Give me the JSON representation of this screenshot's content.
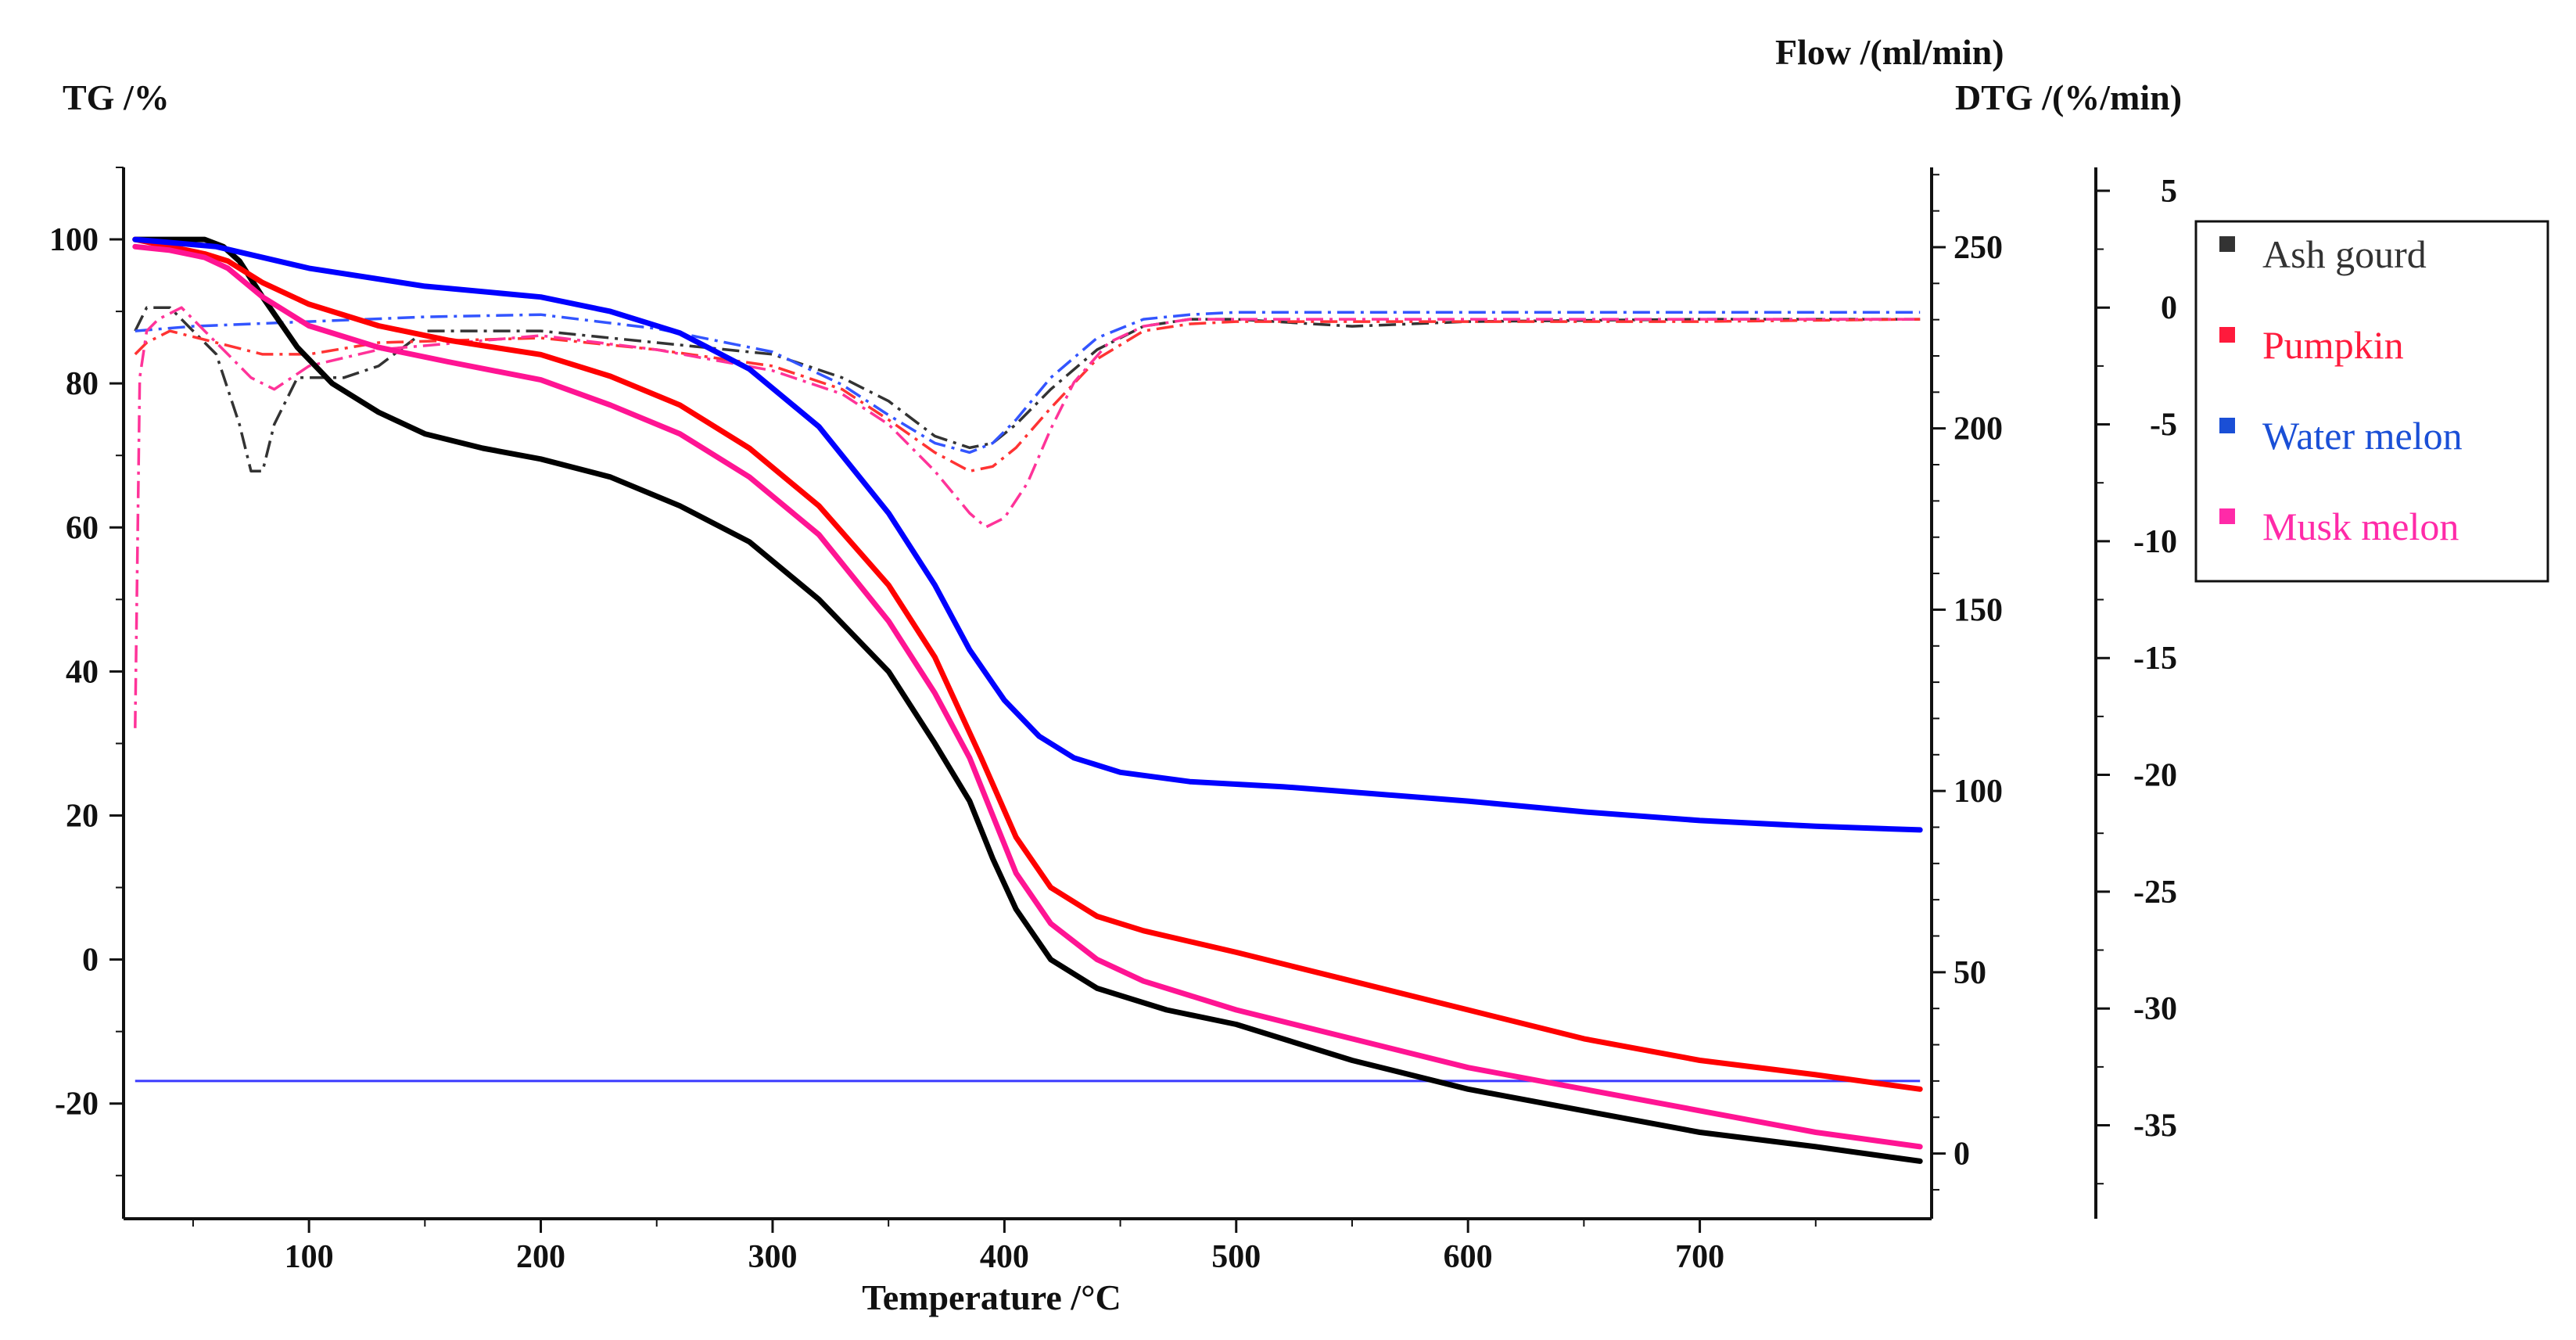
{
  "chart_data": {
    "type": "line",
    "xlabel": "Temperature /°C",
    "ylabel_left": "TG /%",
    "ylabel_right_inner": "Flow /(ml/min)",
    "ylabel_right_outer": "DTG /(%/min)",
    "xlim": [
      20,
      800
    ],
    "ylim_tg": [
      -36,
      110
    ],
    "ylim_flow": [
      -18,
      272
    ],
    "ylim_dtg": [
      -39,
      6
    ],
    "x_ticks": [
      "100",
      "200",
      "300",
      "400",
      "500",
      "600",
      "700"
    ],
    "tg_ticks": [
      "100",
      "80",
      "60",
      "40",
      "20",
      "0",
      "-20"
    ],
    "flow_ticks": [
      "250",
      "200",
      "150",
      "100",
      "50",
      "0"
    ],
    "dtg_ticks": [
      "5",
      "0",
      "-5",
      "-10",
      "-15",
      "-20",
      "-25",
      "-30",
      "-35"
    ],
    "legend": [
      {
        "label": "Ash gourd",
        "color": "#2a2a2a"
      },
      {
        "label": "Pumpkin",
        "color": "#ff1a3c"
      },
      {
        "label": "Water melon",
        "color": "#1a4fd6"
      },
      {
        "label": "Musk melon",
        "color": "#ff2aa8"
      }
    ],
    "series_tg": [
      {
        "name": "Ash gourd",
        "color": "#000000",
        "x": [
          25,
          40,
          55,
          63,
          70,
          80,
          95,
          110,
          130,
          150,
          175,
          200,
          230,
          260,
          290,
          320,
          350,
          370,
          385,
          395,
          405,
          420,
          440,
          470,
          500,
          550,
          600,
          650,
          700,
          750,
          795
        ],
        "y": [
          100,
          100,
          100,
          99,
          97,
          92,
          85,
          80,
          76,
          73,
          71,
          69.5,
          67,
          63,
          58,
          50,
          40,
          30,
          22,
          14,
          7,
          0,
          -4,
          -7,
          -9,
          -14,
          -18,
          -21,
          -24,
          -26,
          -28
        ]
      },
      {
        "name": "Pumpkin",
        "color": "#ff0000",
        "x": [
          25,
          40,
          55,
          65,
          80,
          100,
          130,
          160,
          200,
          230,
          260,
          290,
          320,
          350,
          370,
          390,
          405,
          420,
          440,
          460,
          500,
          550,
          600,
          650,
          700,
          750,
          795
        ],
        "y": [
          100,
          99,
          98,
          97,
          94,
          91,
          88,
          86,
          84,
          81,
          77,
          71,
          63,
          52,
          42,
          28,
          17,
          10,
          6,
          4,
          1,
          -3,
          -7,
          -11,
          -14,
          -16,
          -18
        ]
      },
      {
        "name": "Water melon",
        "color": "#0000ff",
        "x": [
          25,
          60,
          100,
          150,
          200,
          230,
          260,
          290,
          320,
          350,
          370,
          385,
          400,
          415,
          430,
          450,
          480,
          520,
          560,
          600,
          650,
          700,
          750,
          795
        ],
        "y": [
          100,
          99,
          96,
          93.5,
          92,
          90,
          87,
          82,
          74,
          62,
          52,
          43,
          36,
          31,
          28,
          26,
          24.7,
          24,
          23,
          22,
          20.5,
          19.3,
          18.5,
          18
        ]
      },
      {
        "name": "Musk melon",
        "color": "#ff1493",
        "x": [
          25,
          40,
          55,
          65,
          80,
          100,
          130,
          160,
          200,
          230,
          260,
          290,
          320,
          350,
          370,
          385,
          395,
          405,
          420,
          440,
          460,
          500,
          550,
          600,
          650,
          700,
          750,
          795
        ],
        "y": [
          99,
          98.5,
          97.5,
          96,
          92,
          88,
          85,
          83,
          80.5,
          77,
          73,
          67,
          59,
          47,
          37,
          28,
          20,
          12,
          5,
          0,
          -3,
          -7,
          -11,
          -15,
          -18,
          -21,
          -24,
          -26
        ]
      }
    ],
    "series_dtg": [
      {
        "name": "Ash gourd",
        "color": "#333333",
        "x": [
          25,
          30,
          40,
          50,
          60,
          70,
          75,
          80,
          85,
          95,
          105,
          115,
          130,
          150,
          200,
          250,
          300,
          330,
          350,
          370,
          385,
          395,
          405,
          420,
          440,
          460,
          480,
          500,
          550,
          600,
          700,
          795
        ],
        "y": [
          -1,
          0,
          0,
          -1,
          -2,
          -5,
          -7,
          -7,
          -5,
          -3,
          -3,
          -3,
          -2.5,
          -1,
          -1,
          -1.5,
          -2,
          -3,
          -4,
          -5.5,
          -6,
          -5.8,
          -5,
          -3.5,
          -1.8,
          -0.8,
          -0.5,
          -0.5,
          -0.8,
          -0.6,
          -0.5,
          -0.5
        ]
      },
      {
        "name": "Pumpkin",
        "color": "#ff3333",
        "x": [
          25,
          30,
          40,
          60,
          80,
          100,
          130,
          200,
          250,
          300,
          330,
          350,
          370,
          385,
          395,
          405,
          420,
          440,
          460,
          480,
          500,
          600,
          700,
          795
        ],
        "y": [
          -2,
          -1.5,
          -1,
          -1.5,
          -2,
          -2,
          -1.5,
          -1.3,
          -1.8,
          -2.5,
          -3.5,
          -4.8,
          -6.2,
          -7,
          -6.8,
          -6,
          -4.3,
          -2.2,
          -1,
          -0.7,
          -0.6,
          -0.6,
          -0.6,
          -0.5
        ]
      },
      {
        "name": "Water melon",
        "color": "#3355ff",
        "x": [
          25,
          50,
          100,
          150,
          200,
          250,
          300,
          330,
          350,
          370,
          385,
          395,
          405,
          420,
          440,
          460,
          480,
          500,
          600,
          700,
          795
        ],
        "y": [
          -1,
          -0.8,
          -0.6,
          -0.4,
          -0.3,
          -0.9,
          -1.9,
          -3.3,
          -4.6,
          -5.8,
          -6.2,
          -5.8,
          -4.8,
          -3,
          -1.3,
          -0.5,
          -0.3,
          -0.2,
          -0.2,
          -0.2,
          -0.2
        ]
      },
      {
        "name": "Musk melon",
        "color": "#ff3399",
        "x": [
          25,
          27,
          30,
          35,
          45,
          55,
          65,
          75,
          85,
          100,
          130,
          200,
          250,
          300,
          330,
          350,
          370,
          385,
          392,
          400,
          410,
          420,
          430,
          445,
          460,
          480,
          500,
          600,
          700,
          795
        ],
        "y": [
          -18,
          -3,
          -1,
          -0.5,
          0,
          -1,
          -2,
          -3,
          -3.5,
          -2.5,
          -1.8,
          -1.2,
          -1.8,
          -2.7,
          -3.7,
          -5,
          -7,
          -8.8,
          -9.4,
          -9,
          -7.5,
          -5.2,
          -3.2,
          -1.5,
          -0.8,
          -0.5,
          -0.5,
          -0.5,
          -0.5,
          -0.5
        ]
      }
    ],
    "series_flow": [
      {
        "name": "Flow",
        "color": "#3a3aff",
        "x": [
          25,
          795
        ],
        "y": [
          20,
          20
        ]
      }
    ]
  }
}
